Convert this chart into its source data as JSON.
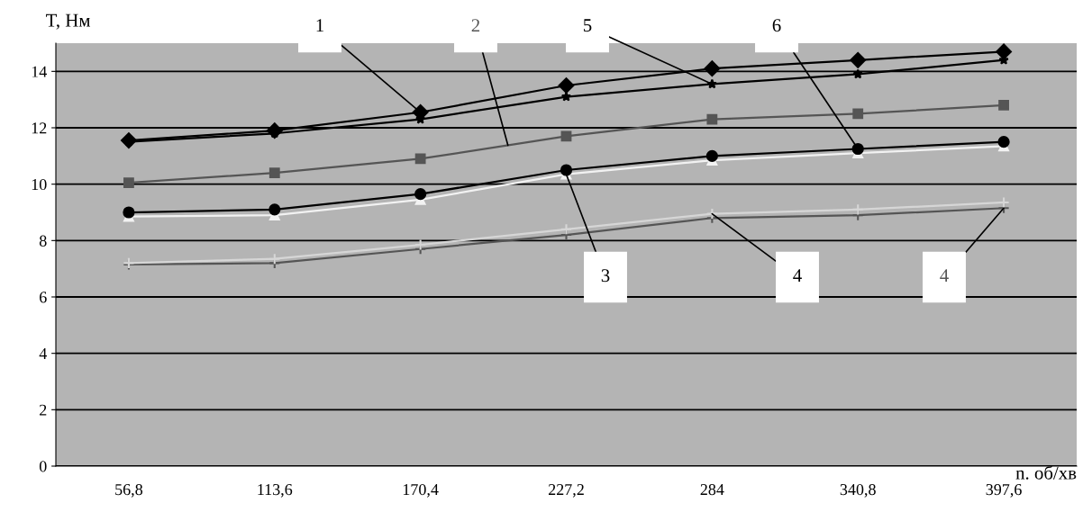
{
  "chart_data": {
    "type": "line",
    "xlabel": "n. об/хв",
    "ylabel": "T, Нм",
    "categories": [
      "56,8",
      "113,6",
      "170,4",
      "227,2",
      "284",
      "340,8",
      "397,6"
    ],
    "series": [
      {
        "name": "1",
        "color": "#000000",
        "marker": "diamond",
        "values": [
          11.55,
          11.9,
          12.55,
          13.5,
          14.1,
          14.4,
          14.7
        ]
      },
      {
        "name": "5",
        "color": "#000000",
        "marker": "star",
        "values": [
          11.5,
          11.8,
          12.3,
          13.1,
          13.55,
          13.9,
          14.4
        ]
      },
      {
        "name": "2",
        "color": "#555555",
        "marker": "square",
        "values": [
          10.05,
          10.4,
          10.9,
          11.7,
          12.3,
          12.5,
          12.8
        ]
      },
      {
        "name": "6",
        "color": "#000000",
        "marker": "circle",
        "values": [
          9.0,
          9.1,
          9.65,
          10.5,
          11.0,
          11.25,
          11.5
        ]
      },
      {
        "name": "3",
        "color": "#f2f2f2",
        "marker": "triangle",
        "values": [
          8.85,
          8.9,
          9.45,
          10.35,
          10.85,
          11.1,
          11.35
        ]
      },
      {
        "name": "4",
        "color": "#d6d6d6",
        "marker": "cross",
        "values": [
          7.2,
          7.35,
          7.85,
          8.4,
          8.95,
          9.1,
          9.35
        ]
      },
      {
        "name": "4",
        "color": "#555555",
        "marker": "cross",
        "values": [
          7.15,
          7.2,
          7.7,
          8.2,
          8.8,
          8.9,
          9.15
        ]
      }
    ],
    "ylim": [
      0,
      15
    ],
    "yticks": [
      0,
      2,
      4,
      6,
      8,
      10,
      12,
      14
    ],
    "grid": "y",
    "legend": false
  }
}
